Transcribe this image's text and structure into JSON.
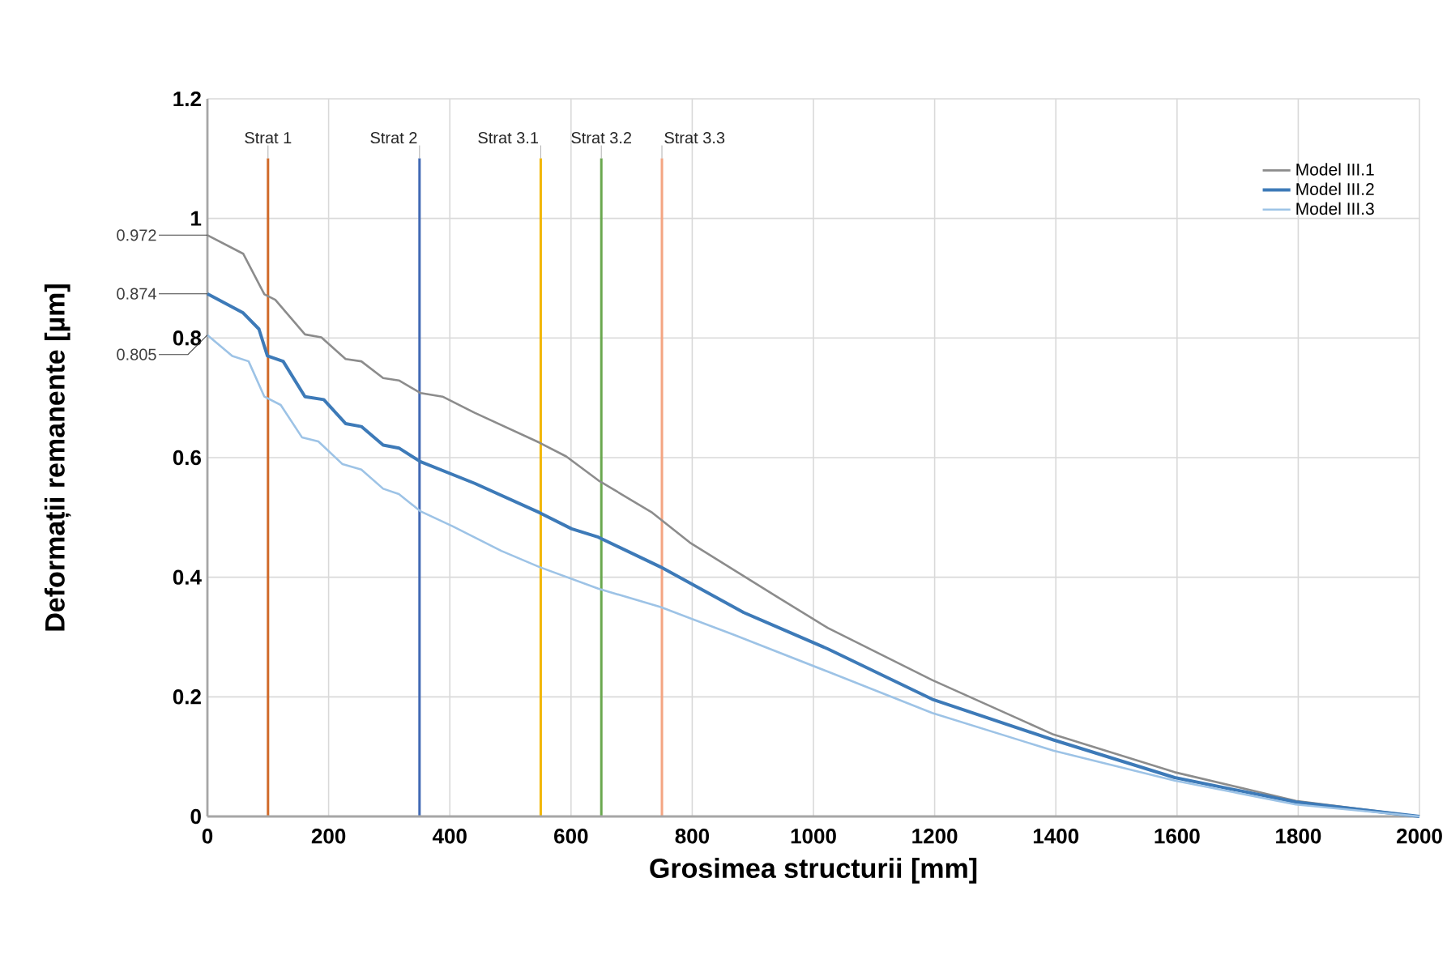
{
  "chart_data": {
    "type": "line",
    "xlabel": "Grosimea structurii [mm]",
    "ylabel": "Deformații remanente [µm]",
    "xlim": [
      0,
      2000
    ],
    "xticks": [
      0,
      200,
      400,
      600,
      800,
      1000,
      1200,
      1400,
      1600,
      1800,
      2000
    ],
    "ylim": [
      0,
      1.2
    ],
    "yticks": [
      0,
      0.2,
      0.4,
      0.6,
      0.8,
      1,
      1.2
    ],
    "grid": true,
    "legend": "top right",
    "marker": "none",
    "line_style": "solid",
    "series": [
      {
        "name": "Model III.1",
        "color": "#8c8c8c",
        "x": [
          0,
          59,
          94,
          112,
          161,
          188,
          228,
          254,
          290,
          316,
          352,
          388,
          441,
          548,
          592,
          645,
          734,
          796,
          939,
          1024,
          1196,
          1396,
          1596,
          1796,
          2000
        ],
        "values": [
          0.972,
          0.941,
          0.873,
          0.864,
          0.806,
          0.801,
          0.765,
          0.761,
          0.733,
          0.729,
          0.708,
          0.702,
          0.675,
          0.625,
          0.602,
          0.562,
          0.508,
          0.458,
          0.368,
          0.315,
          0.228,
          0.137,
          0.074,
          0.026,
          0
        ],
        "value_labels": [
          "0.972",
          null,
          null,
          null,
          null,
          null,
          null,
          null,
          null,
          null,
          null,
          null,
          null,
          null,
          null,
          null,
          null,
          null,
          null,
          null,
          null,
          null,
          null,
          null,
          null
        ]
      },
      {
        "name": "Model III.2",
        "color": "#3d7ab8",
        "x": [
          0,
          59,
          85,
          99,
          125,
          161,
          192,
          228,
          254,
          290,
          316,
          352,
          441,
          548,
          601,
          645,
          748,
          885,
          1024,
          1196,
          1396,
          1596,
          1796,
          2000
        ],
        "values": [
          0.874,
          0.842,
          0.815,
          0.77,
          0.761,
          0.702,
          0.697,
          0.657,
          0.652,
          0.621,
          0.616,
          0.593,
          0.557,
          0.508,
          0.481,
          0.467,
          0.417,
          0.341,
          0.28,
          0.196,
          0.128,
          0.065,
          0.024,
          0
        ],
        "value_labels": [
          "0.874",
          null,
          null,
          null,
          null,
          null,
          null,
          null,
          null,
          null,
          null,
          null,
          null,
          null,
          null,
          null,
          null,
          null,
          null,
          null,
          null,
          null,
          null,
          null
        ]
      },
      {
        "name": "Model III.3",
        "color": "#9dc3e6",
        "x": [
          0,
          41,
          68,
          94,
          121,
          156,
          183,
          223,
          254,
          290,
          316,
          352,
          405,
          485,
          548,
          645,
          748,
          868,
          1024,
          1196,
          1396,
          1596,
          1796,
          2000
        ],
        "values": [
          0.805,
          0.77,
          0.761,
          0.702,
          0.688,
          0.634,
          0.627,
          0.589,
          0.58,
          0.548,
          0.539,
          0.51,
          0.485,
          0.444,
          0.417,
          0.381,
          0.35,
          0.304,
          0.242,
          0.173,
          0.11,
          0.06,
          0.02,
          0
        ],
        "value_labels": [
          "0.805",
          null,
          null,
          null,
          null,
          null,
          null,
          null,
          null,
          null,
          null,
          null,
          null,
          null,
          null,
          null,
          null,
          null,
          null,
          null,
          null,
          null,
          null,
          null
        ]
      }
    ],
    "ref_lines": [
      {
        "axis": "x",
        "value": 100,
        "label": "Strat 1",
        "color": "#d06a2a"
      },
      {
        "axis": "x",
        "value": 350,
        "label": "Strat 2",
        "color": "#4068b4"
      },
      {
        "axis": "x",
        "value": 550,
        "label": "Strat 3.1",
        "color": "#f2b600"
      },
      {
        "axis": "x",
        "value": 650,
        "label": "Strat 3.2",
        "color": "#6aa84f"
      },
      {
        "axis": "x",
        "value": 750,
        "label": "Strat 3.3",
        "color": "#f4a582"
      }
    ]
  }
}
